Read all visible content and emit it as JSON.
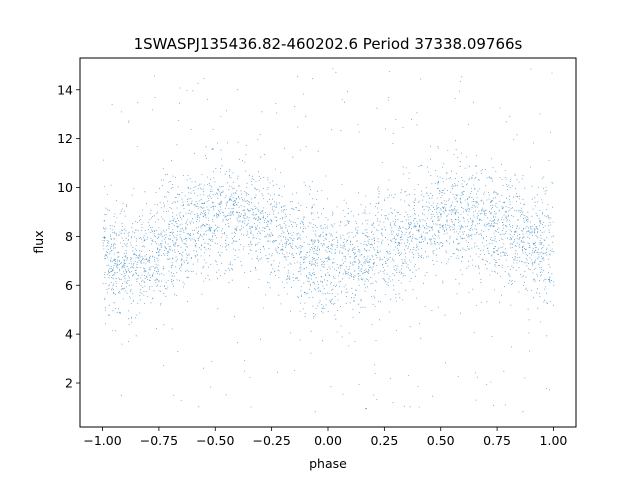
{
  "chart_data": {
    "type": "scatter",
    "title": "1SWASPJ135436.82-460202.6 Period 37338.09766s",
    "xlabel": "phase",
    "ylabel": "flux",
    "xlim": [
      -1.1,
      1.1
    ],
    "ylim": [
      0.2,
      15.3
    ],
    "x_ticks": [
      -1.0,
      -0.75,
      -0.5,
      -0.25,
      0.0,
      0.25,
      0.5,
      0.75,
      1.0
    ],
    "x_tick_labels": [
      "−1.00",
      "−0.75",
      "−0.50",
      "−0.25",
      "0.00",
      "0.25",
      "0.50",
      "0.75",
      "1.00"
    ],
    "y_ticks": [
      2,
      4,
      6,
      8,
      10,
      12,
      14
    ],
    "y_tick_labels": [
      "2",
      "4",
      "6",
      "8",
      "10",
      "12",
      "14"
    ],
    "grid": false,
    "marker_color": "#1f77b4",
    "phase_range": [
      -1.0,
      1.0
    ],
    "model_curve": {
      "description": "mean flux versus phase (sinusoidal light curve, two cycles over the phase range)",
      "phase": [
        -1.0,
        -0.875,
        -0.75,
        -0.625,
        -0.5,
        -0.375,
        -0.25,
        -0.125,
        0.0,
        0.125,
        0.25,
        0.375,
        0.5,
        0.625,
        0.75,
        0.875,
        1.0
      ],
      "flux": [
        7.0,
        6.9,
        7.5,
        8.3,
        8.8,
        8.9,
        8.3,
        7.5,
        6.9,
        7.0,
        7.6,
        8.3,
        8.8,
        8.8,
        8.4,
        7.8,
        7.1
      ]
    },
    "scatter_spread": 1.1,
    "flux_range": [
      0.8,
      14.9
    ]
  }
}
